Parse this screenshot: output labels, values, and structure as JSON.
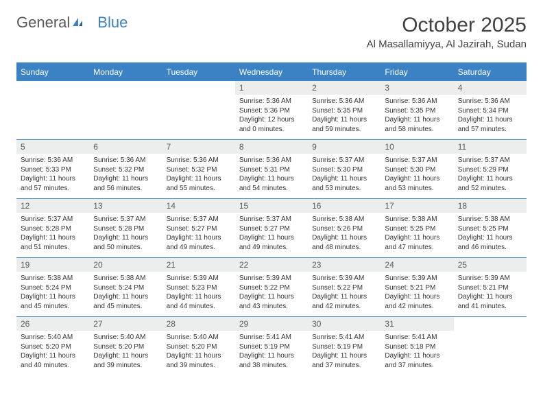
{
  "brand": {
    "word1": "General",
    "word2": "Blue"
  },
  "title": "October 2025",
  "location": "Al Masallamiyya, Al Jazirah, Sudan",
  "day_headers": [
    "Sunday",
    "Monday",
    "Tuesday",
    "Wednesday",
    "Thursday",
    "Friday",
    "Saturday"
  ],
  "colors": {
    "header_bg": "#3b82c4",
    "header_text": "#ffffff",
    "daynum_bg": "#eceded",
    "row_rule": "#3b82c4"
  },
  "weeks": [
    [
      {
        "empty": true
      },
      {
        "empty": true
      },
      {
        "empty": true
      },
      {
        "day": "1",
        "sunrise": "Sunrise: 5:36 AM",
        "sunset": "Sunset: 5:36 PM",
        "daylight1": "Daylight: 12 hours",
        "daylight2": "and 0 minutes."
      },
      {
        "day": "2",
        "sunrise": "Sunrise: 5:36 AM",
        "sunset": "Sunset: 5:35 PM",
        "daylight1": "Daylight: 11 hours",
        "daylight2": "and 59 minutes."
      },
      {
        "day": "3",
        "sunrise": "Sunrise: 5:36 AM",
        "sunset": "Sunset: 5:35 PM",
        "daylight1": "Daylight: 11 hours",
        "daylight2": "and 58 minutes."
      },
      {
        "day": "4",
        "sunrise": "Sunrise: 5:36 AM",
        "sunset": "Sunset: 5:34 PM",
        "daylight1": "Daylight: 11 hours",
        "daylight2": "and 57 minutes."
      }
    ],
    [
      {
        "day": "5",
        "sunrise": "Sunrise: 5:36 AM",
        "sunset": "Sunset: 5:33 PM",
        "daylight1": "Daylight: 11 hours",
        "daylight2": "and 57 minutes."
      },
      {
        "day": "6",
        "sunrise": "Sunrise: 5:36 AM",
        "sunset": "Sunset: 5:32 PM",
        "daylight1": "Daylight: 11 hours",
        "daylight2": "and 56 minutes."
      },
      {
        "day": "7",
        "sunrise": "Sunrise: 5:36 AM",
        "sunset": "Sunset: 5:32 PM",
        "daylight1": "Daylight: 11 hours",
        "daylight2": "and 55 minutes."
      },
      {
        "day": "8",
        "sunrise": "Sunrise: 5:36 AM",
        "sunset": "Sunset: 5:31 PM",
        "daylight1": "Daylight: 11 hours",
        "daylight2": "and 54 minutes."
      },
      {
        "day": "9",
        "sunrise": "Sunrise: 5:37 AM",
        "sunset": "Sunset: 5:30 PM",
        "daylight1": "Daylight: 11 hours",
        "daylight2": "and 53 minutes."
      },
      {
        "day": "10",
        "sunrise": "Sunrise: 5:37 AM",
        "sunset": "Sunset: 5:30 PM",
        "daylight1": "Daylight: 11 hours",
        "daylight2": "and 53 minutes."
      },
      {
        "day": "11",
        "sunrise": "Sunrise: 5:37 AM",
        "sunset": "Sunset: 5:29 PM",
        "daylight1": "Daylight: 11 hours",
        "daylight2": "and 52 minutes."
      }
    ],
    [
      {
        "day": "12",
        "sunrise": "Sunrise: 5:37 AM",
        "sunset": "Sunset: 5:28 PM",
        "daylight1": "Daylight: 11 hours",
        "daylight2": "and 51 minutes."
      },
      {
        "day": "13",
        "sunrise": "Sunrise: 5:37 AM",
        "sunset": "Sunset: 5:28 PM",
        "daylight1": "Daylight: 11 hours",
        "daylight2": "and 50 minutes."
      },
      {
        "day": "14",
        "sunrise": "Sunrise: 5:37 AM",
        "sunset": "Sunset: 5:27 PM",
        "daylight1": "Daylight: 11 hours",
        "daylight2": "and 49 minutes."
      },
      {
        "day": "15",
        "sunrise": "Sunrise: 5:37 AM",
        "sunset": "Sunset: 5:27 PM",
        "daylight1": "Daylight: 11 hours",
        "daylight2": "and 49 minutes."
      },
      {
        "day": "16",
        "sunrise": "Sunrise: 5:38 AM",
        "sunset": "Sunset: 5:26 PM",
        "daylight1": "Daylight: 11 hours",
        "daylight2": "and 48 minutes."
      },
      {
        "day": "17",
        "sunrise": "Sunrise: 5:38 AM",
        "sunset": "Sunset: 5:25 PM",
        "daylight1": "Daylight: 11 hours",
        "daylight2": "and 47 minutes."
      },
      {
        "day": "18",
        "sunrise": "Sunrise: 5:38 AM",
        "sunset": "Sunset: 5:25 PM",
        "daylight1": "Daylight: 11 hours",
        "daylight2": "and 46 minutes."
      }
    ],
    [
      {
        "day": "19",
        "sunrise": "Sunrise: 5:38 AM",
        "sunset": "Sunset: 5:24 PM",
        "daylight1": "Daylight: 11 hours",
        "daylight2": "and 45 minutes."
      },
      {
        "day": "20",
        "sunrise": "Sunrise: 5:38 AM",
        "sunset": "Sunset: 5:24 PM",
        "daylight1": "Daylight: 11 hours",
        "daylight2": "and 45 minutes."
      },
      {
        "day": "21",
        "sunrise": "Sunrise: 5:39 AM",
        "sunset": "Sunset: 5:23 PM",
        "daylight1": "Daylight: 11 hours",
        "daylight2": "and 44 minutes."
      },
      {
        "day": "22",
        "sunrise": "Sunrise: 5:39 AM",
        "sunset": "Sunset: 5:22 PM",
        "daylight1": "Daylight: 11 hours",
        "daylight2": "and 43 minutes."
      },
      {
        "day": "23",
        "sunrise": "Sunrise: 5:39 AM",
        "sunset": "Sunset: 5:22 PM",
        "daylight1": "Daylight: 11 hours",
        "daylight2": "and 42 minutes."
      },
      {
        "day": "24",
        "sunrise": "Sunrise: 5:39 AM",
        "sunset": "Sunset: 5:21 PM",
        "daylight1": "Daylight: 11 hours",
        "daylight2": "and 42 minutes."
      },
      {
        "day": "25",
        "sunrise": "Sunrise: 5:39 AM",
        "sunset": "Sunset: 5:21 PM",
        "daylight1": "Daylight: 11 hours",
        "daylight2": "and 41 minutes."
      }
    ],
    [
      {
        "day": "26",
        "sunrise": "Sunrise: 5:40 AM",
        "sunset": "Sunset: 5:20 PM",
        "daylight1": "Daylight: 11 hours",
        "daylight2": "and 40 minutes."
      },
      {
        "day": "27",
        "sunrise": "Sunrise: 5:40 AM",
        "sunset": "Sunset: 5:20 PM",
        "daylight1": "Daylight: 11 hours",
        "daylight2": "and 39 minutes."
      },
      {
        "day": "28",
        "sunrise": "Sunrise: 5:40 AM",
        "sunset": "Sunset: 5:20 PM",
        "daylight1": "Daylight: 11 hours",
        "daylight2": "and 39 minutes."
      },
      {
        "day": "29",
        "sunrise": "Sunrise: 5:41 AM",
        "sunset": "Sunset: 5:19 PM",
        "daylight1": "Daylight: 11 hours",
        "daylight2": "and 38 minutes."
      },
      {
        "day": "30",
        "sunrise": "Sunrise: 5:41 AM",
        "sunset": "Sunset: 5:19 PM",
        "daylight1": "Daylight: 11 hours",
        "daylight2": "and 37 minutes."
      },
      {
        "day": "31",
        "sunrise": "Sunrise: 5:41 AM",
        "sunset": "Sunset: 5:18 PM",
        "daylight1": "Daylight: 11 hours",
        "daylight2": "and 37 minutes."
      },
      {
        "empty": true
      }
    ]
  ]
}
